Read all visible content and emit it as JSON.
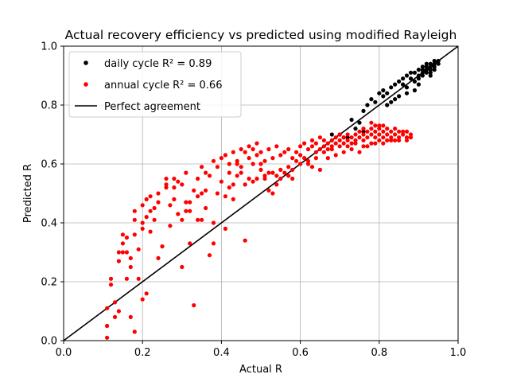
{
  "chart_data": {
    "type": "scatter",
    "title": "Actual recovery efficiency vs predicted using modified Rayleigh",
    "xlabel": "Actual R",
    "ylabel": "Predicted R",
    "xlim": [
      0.0,
      1.0
    ],
    "ylim": [
      0.0,
      1.0
    ],
    "xticks": [
      "0.0",
      "0.2",
      "0.4",
      "0.6",
      "0.8",
      "1.0"
    ],
    "yticks": [
      "0.0",
      "0.2",
      "0.4",
      "0.6",
      "0.8",
      "1.0"
    ],
    "grid": true,
    "legend_position": "top-left",
    "legend": [
      {
        "label": "daily cycle  R² = 0.89",
        "color": "#000000",
        "marker": "dot"
      },
      {
        "label": "annual cycle  R² = 0.66",
        "color": "#ff0000",
        "marker": "dot"
      },
      {
        "label": "Perfect agreement",
        "color": "#000000",
        "marker": "line"
      }
    ],
    "reference_line": {
      "name": "Perfect agreement",
      "x": [
        0,
        1
      ],
      "y": [
        0,
        1
      ]
    },
    "series": [
      {
        "name": "daily cycle",
        "color": "#000000",
        "points": [
          [
            0.68,
            0.7
          ],
          [
            0.7,
            0.7
          ],
          [
            0.71,
            0.69
          ],
          [
            0.73,
            0.75
          ],
          [
            0.74,
            0.72
          ],
          [
            0.75,
            0.74
          ],
          [
            0.76,
            0.78
          ],
          [
            0.77,
            0.8
          ],
          [
            0.78,
            0.82
          ],
          [
            0.79,
            0.81
          ],
          [
            0.8,
            0.84
          ],
          [
            0.81,
            0.83
          ],
          [
            0.81,
            0.85
          ],
          [
            0.82,
            0.84
          ],
          [
            0.83,
            0.86
          ],
          [
            0.84,
            0.87
          ],
          [
            0.84,
            0.82
          ],
          [
            0.85,
            0.88
          ],
          [
            0.86,
            0.87
          ],
          [
            0.86,
            0.89
          ],
          [
            0.87,
            0.86
          ],
          [
            0.87,
            0.9
          ],
          [
            0.88,
            0.89
          ],
          [
            0.88,
            0.91
          ],
          [
            0.89,
            0.88
          ],
          [
            0.89,
            0.91
          ],
          [
            0.9,
            0.9
          ],
          [
            0.9,
            0.92
          ],
          [
            0.91,
            0.91
          ],
          [
            0.91,
            0.93
          ],
          [
            0.92,
            0.92
          ],
          [
            0.92,
            0.94
          ],
          [
            0.93,
            0.93
          ],
          [
            0.93,
            0.92
          ],
          [
            0.94,
            0.94
          ],
          [
            0.94,
            0.93
          ],
          [
            0.95,
            0.95
          ],
          [
            0.9,
            0.89
          ],
          [
            0.91,
            0.9
          ],
          [
            0.92,
            0.91
          ],
          [
            0.93,
            0.94
          ],
          [
            0.94,
            0.95
          ],
          [
            0.92,
            0.93
          ],
          [
            0.91,
            0.92
          ],
          [
            0.95,
            0.94
          ],
          [
            0.93,
            0.91
          ],
          [
            0.9,
            0.87
          ],
          [
            0.89,
            0.85
          ],
          [
            0.87,
            0.84
          ],
          [
            0.85,
            0.83
          ],
          [
            0.83,
            0.81
          ],
          [
            0.82,
            0.8
          ],
          [
            0.76,
            0.71
          ],
          [
            0.72,
            0.69
          ],
          [
            0.93,
            0.9
          ],
          [
            0.94,
            0.92
          ]
        ]
      },
      {
        "name": "annual cycle",
        "color": "#ff0000",
        "points": [
          [
            0.11,
            0.01
          ],
          [
            0.11,
            0.05
          ],
          [
            0.11,
            0.11
          ],
          [
            0.12,
            0.19
          ],
          [
            0.12,
            0.21
          ],
          [
            0.13,
            0.08
          ],
          [
            0.13,
            0.13
          ],
          [
            0.14,
            0.27
          ],
          [
            0.14,
            0.1
          ],
          [
            0.14,
            0.3
          ],
          [
            0.15,
            0.33
          ],
          [
            0.15,
            0.36
          ],
          [
            0.16,
            0.21
          ],
          [
            0.16,
            0.35
          ],
          [
            0.17,
            0.25
          ],
          [
            0.17,
            0.28
          ],
          [
            0.17,
            0.08
          ],
          [
            0.18,
            0.03
          ],
          [
            0.18,
            0.41
          ],
          [
            0.18,
            0.44
          ],
          [
            0.19,
            0.31
          ],
          [
            0.19,
            0.21
          ],
          [
            0.2,
            0.46
          ],
          [
            0.2,
            0.38
          ],
          [
            0.2,
            0.14
          ],
          [
            0.21,
            0.42
          ],
          [
            0.21,
            0.48
          ],
          [
            0.21,
            0.16
          ],
          [
            0.22,
            0.37
          ],
          [
            0.22,
            0.49
          ],
          [
            0.23,
            0.41
          ],
          [
            0.23,
            0.45
          ],
          [
            0.24,
            0.28
          ],
          [
            0.24,
            0.5
          ],
          [
            0.25,
            0.32
          ],
          [
            0.26,
            0.55
          ],
          [
            0.26,
            0.52
          ],
          [
            0.27,
            0.46
          ],
          [
            0.28,
            0.55
          ],
          [
            0.28,
            0.48
          ],
          [
            0.29,
            0.43
          ],
          [
            0.29,
            0.54
          ],
          [
            0.3,
            0.53
          ],
          [
            0.3,
            0.25
          ],
          [
            0.31,
            0.47
          ],
          [
            0.31,
            0.57
          ],
          [
            0.32,
            0.33
          ],
          [
            0.32,
            0.44
          ],
          [
            0.33,
            0.12
          ],
          [
            0.33,
            0.51
          ],
          [
            0.34,
            0.55
          ],
          [
            0.34,
            0.41
          ],
          [
            0.35,
            0.59
          ],
          [
            0.35,
            0.5
          ],
          [
            0.36,
            0.57
          ],
          [
            0.36,
            0.45
          ],
          [
            0.37,
            0.29
          ],
          [
            0.37,
            0.56
          ],
          [
            0.38,
            0.61
          ],
          [
            0.38,
            0.33
          ],
          [
            0.39,
            0.59
          ],
          [
            0.4,
            0.54
          ],
          [
            0.4,
            0.62
          ],
          [
            0.41,
            0.49
          ],
          [
            0.41,
            0.63
          ],
          [
            0.42,
            0.52
          ],
          [
            0.42,
            0.6
          ],
          [
            0.43,
            0.64
          ],
          [
            0.43,
            0.48
          ],
          [
            0.44,
            0.61
          ],
          [
            0.44,
            0.56
          ],
          [
            0.45,
            0.65
          ],
          [
            0.45,
            0.59
          ],
          [
            0.46,
            0.53
          ],
          [
            0.46,
            0.34
          ],
          [
            0.47,
            0.62
          ],
          [
            0.47,
            0.66
          ],
          [
            0.48,
            0.6
          ],
          [
            0.48,
            0.54
          ],
          [
            0.49,
            0.63
          ],
          [
            0.49,
            0.67
          ],
          [
            0.5,
            0.58
          ],
          [
            0.5,
            0.64
          ],
          [
            0.51,
            0.61
          ],
          [
            0.51,
            0.55
          ],
          [
            0.52,
            0.65
          ],
          [
            0.52,
            0.57
          ],
          [
            0.53,
            0.62
          ],
          [
            0.53,
            0.5
          ],
          [
            0.54,
            0.56
          ],
          [
            0.54,
            0.66
          ],
          [
            0.55,
            0.58
          ],
          [
            0.55,
            0.63
          ],
          [
            0.56,
            0.57
          ],
          [
            0.56,
            0.64
          ],
          [
            0.57,
            0.59
          ],
          [
            0.57,
            0.65
          ],
          [
            0.58,
            0.58
          ],
          [
            0.58,
            0.62
          ],
          [
            0.59,
            0.64
          ],
          [
            0.59,
            0.61
          ],
          [
            0.6,
            0.66
          ],
          [
            0.6,
            0.63
          ],
          [
            0.61,
            0.62
          ],
          [
            0.61,
            0.67
          ],
          [
            0.62,
            0.65
          ],
          [
            0.62,
            0.61
          ],
          [
            0.63,
            0.66
          ],
          [
            0.63,
            0.68
          ],
          [
            0.64,
            0.64
          ],
          [
            0.64,
            0.67
          ],
          [
            0.65,
            0.65
          ],
          [
            0.65,
            0.69
          ],
          [
            0.66,
            0.66
          ],
          [
            0.66,
            0.68
          ],
          [
            0.67,
            0.67
          ],
          [
            0.67,
            0.65
          ],
          [
            0.68,
            0.68
          ],
          [
            0.68,
            0.66
          ],
          [
            0.69,
            0.69
          ],
          [
            0.69,
            0.67
          ],
          [
            0.7,
            0.68
          ],
          [
            0.7,
            0.7
          ],
          [
            0.71,
            0.67
          ],
          [
            0.71,
            0.69
          ],
          [
            0.72,
            0.68
          ],
          [
            0.72,
            0.7
          ],
          [
            0.73,
            0.69
          ],
          [
            0.73,
            0.67
          ],
          [
            0.74,
            0.7
          ],
          [
            0.74,
            0.68
          ],
          [
            0.75,
            0.69
          ],
          [
            0.75,
            0.71
          ],
          [
            0.76,
            0.7
          ],
          [
            0.76,
            0.68
          ],
          [
            0.77,
            0.71
          ],
          [
            0.77,
            0.69
          ],
          [
            0.78,
            0.7
          ],
          [
            0.78,
            0.72
          ],
          [
            0.79,
            0.71
          ],
          [
            0.79,
            0.69
          ],
          [
            0.8,
            0.72
          ],
          [
            0.8,
            0.7
          ],
          [
            0.81,
            0.71
          ],
          [
            0.81,
            0.69
          ],
          [
            0.82,
            0.72
          ],
          [
            0.82,
            0.7
          ],
          [
            0.83,
            0.71
          ],
          [
            0.83,
            0.69
          ],
          [
            0.84,
            0.7
          ],
          [
            0.84,
            0.72
          ],
          [
            0.85,
            0.71
          ],
          [
            0.85,
            0.69
          ],
          [
            0.86,
            0.7
          ],
          [
            0.86,
            0.71
          ],
          [
            0.87,
            0.69
          ],
          [
            0.87,
            0.71
          ],
          [
            0.88,
            0.7
          ],
          [
            0.62,
            0.6
          ],
          [
            0.64,
            0.62
          ],
          [
            0.66,
            0.64
          ],
          [
            0.68,
            0.65
          ],
          [
            0.7,
            0.66
          ],
          [
            0.72,
            0.66
          ],
          [
            0.74,
            0.67
          ],
          [
            0.76,
            0.66
          ],
          [
            0.78,
            0.67
          ],
          [
            0.8,
            0.68
          ],
          [
            0.82,
            0.68
          ],
          [
            0.84,
            0.68
          ],
          [
            0.57,
            0.56
          ],
          [
            0.55,
            0.55
          ],
          [
            0.53,
            0.57
          ],
          [
            0.51,
            0.56
          ],
          [
            0.5,
            0.6
          ],
          [
            0.48,
            0.65
          ],
          [
            0.46,
            0.64
          ],
          [
            0.44,
            0.6
          ],
          [
            0.42,
            0.57
          ],
          [
            0.39,
            0.5
          ],
          [
            0.36,
            0.51
          ],
          [
            0.34,
            0.49
          ],
          [
            0.32,
            0.47
          ],
          [
            0.3,
            0.41
          ],
          [
            0.28,
            0.52
          ],
          [
            0.26,
            0.53
          ],
          [
            0.24,
            0.47
          ],
          [
            0.22,
            0.44
          ],
          [
            0.2,
            0.4
          ],
          [
            0.18,
            0.36
          ],
          [
            0.16,
            0.3
          ],
          [
            0.15,
            0.3
          ],
          [
            0.27,
            0.39
          ],
          [
            0.31,
            0.44
          ],
          [
            0.35,
            0.41
          ],
          [
            0.38,
            0.4
          ],
          [
            0.41,
            0.38
          ],
          [
            0.43,
            0.53
          ],
          [
            0.45,
            0.57
          ],
          [
            0.47,
            0.55
          ],
          [
            0.49,
            0.55
          ],
          [
            0.52,
            0.51
          ],
          [
            0.54,
            0.53
          ],
          [
            0.58,
            0.55
          ],
          [
            0.6,
            0.6
          ],
          [
            0.63,
            0.59
          ],
          [
            0.65,
            0.58
          ],
          [
            0.67,
            0.62
          ],
          [
            0.69,
            0.63
          ],
          [
            0.71,
            0.64
          ],
          [
            0.73,
            0.65
          ],
          [
            0.75,
            0.64
          ],
          [
            0.77,
            0.66
          ],
          [
            0.79,
            0.67
          ],
          [
            0.81,
            0.67
          ],
          [
            0.83,
            0.68
          ],
          [
            0.85,
            0.68
          ],
          [
            0.87,
            0.68
          ],
          [
            0.88,
            0.69
          ],
          [
            0.8,
            0.73
          ],
          [
            0.81,
            0.73
          ],
          [
            0.79,
            0.73
          ],
          [
            0.78,
            0.74
          ],
          [
            0.76,
            0.72
          ]
        ]
      }
    ]
  }
}
